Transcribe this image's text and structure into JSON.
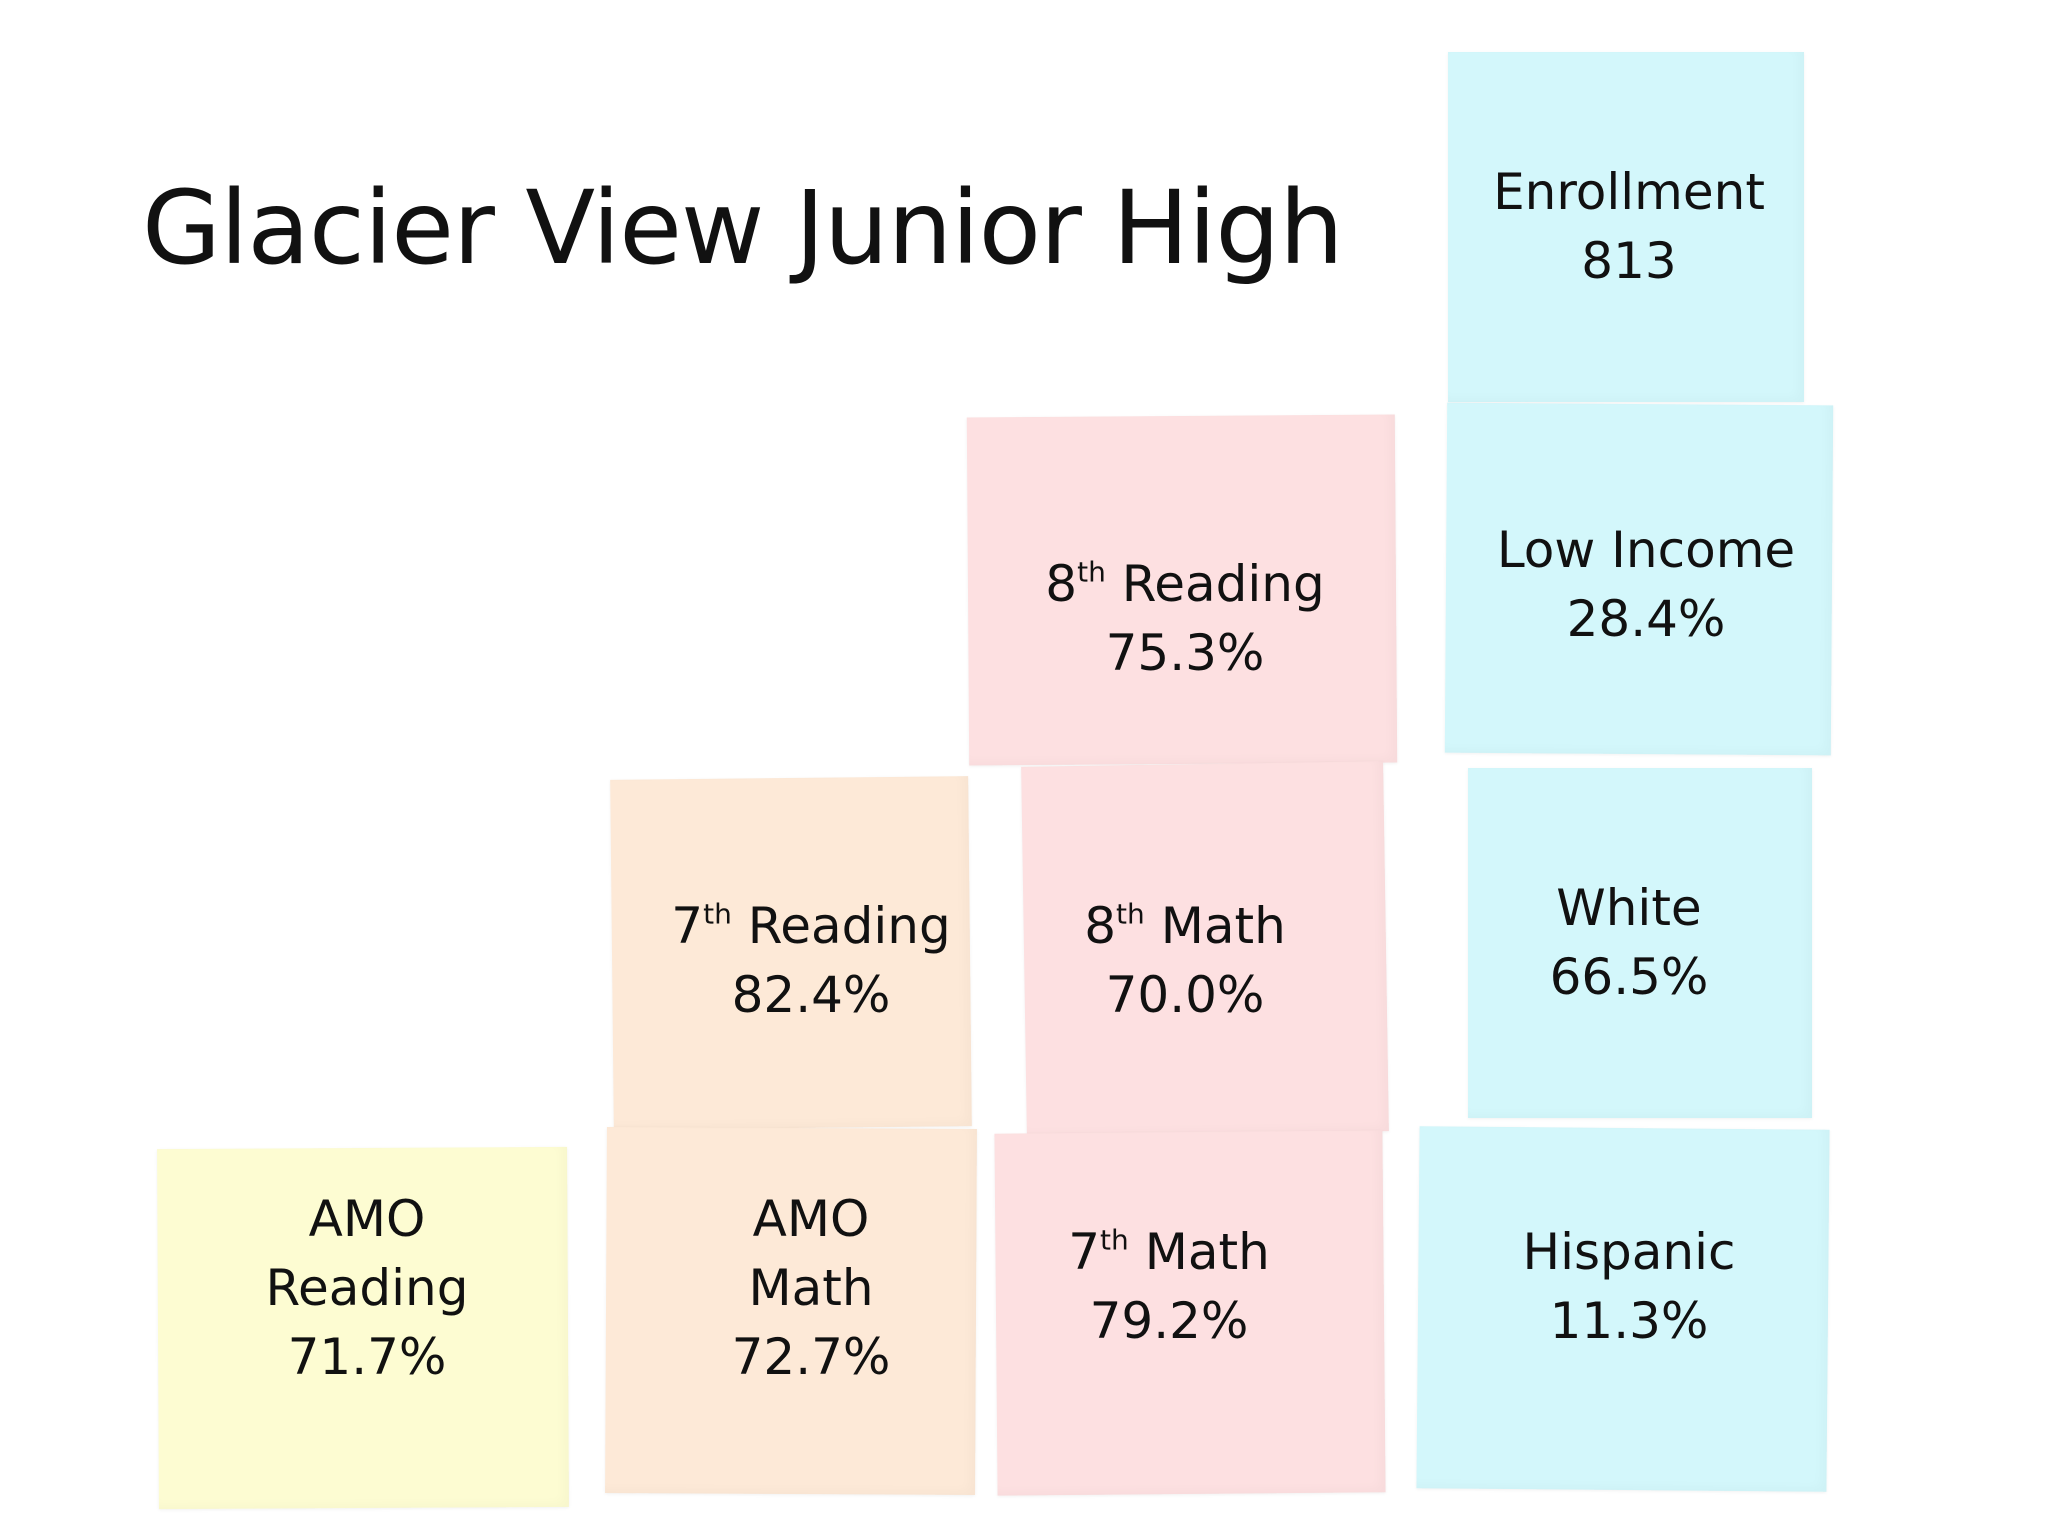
{
  "title": "Glacier View Junior High",
  "colors": {
    "yellow": "#fdfcd2",
    "peach": "#fde9d7",
    "pink": "#fde0e1",
    "cyan": "#d3f7fb"
  },
  "blocks": {
    "amo_reading": {
      "line1": "AMO",
      "line2": "Reading",
      "value": "71.7%"
    },
    "amo_math": {
      "line1": "AMO",
      "line2": "Math",
      "value": "72.7%"
    },
    "reading_7th": {
      "grade": "7",
      "suffix": "th",
      "subject": "Reading",
      "value": "82.4%"
    },
    "math_7th": {
      "grade": "7",
      "suffix": "th",
      "subject": "Math",
      "value": "79.2%"
    },
    "math_8th": {
      "grade": "8",
      "suffix": "th",
      "subject": "Math",
      "value": "70.0%"
    },
    "reading_8th": {
      "grade": "8",
      "suffix": "th",
      "subject": "Reading",
      "value": "75.3%"
    },
    "enrollment": {
      "label": "Enrollment",
      "value": "813"
    },
    "low_income": {
      "label": "Low Income",
      "value": "28.4%"
    },
    "white": {
      "label": "White",
      "value": "66.5%"
    },
    "hispanic": {
      "label": "Hispanic",
      "value": "11.3%"
    }
  }
}
